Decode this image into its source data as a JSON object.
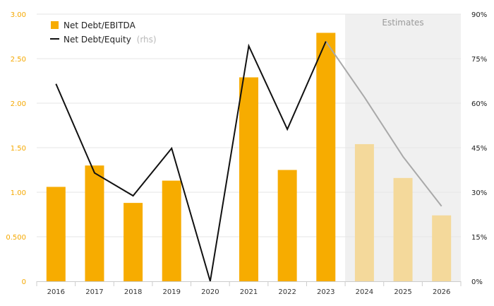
{
  "chart_data": {
    "type": "bar",
    "categories": [
      "2016",
      "2017",
      "2018",
      "2019",
      "2020",
      "2021",
      "2022",
      "2023",
      "2024",
      "2025",
      "2026"
    ],
    "series": [
      {
        "name": "Net Debt/EBITDA",
        "type": "bar",
        "axis": "left",
        "values": [
          1.06,
          1.3,
          0.88,
          1.13,
          0.0,
          2.29,
          1.25,
          2.79,
          1.54,
          1.16,
          0.74
        ]
      },
      {
        "name": "Net Debt/Equity",
        "type": "line",
        "axis": "right",
        "values": [
          66.5,
          36.5,
          28.8,
          44.8,
          0.0,
          79.3,
          51.2,
          80.8,
          62.0,
          42.0,
          25.3
        ]
      }
    ],
    "estimate_start_index": 8,
    "estimates_label": "Estimates",
    "legend": [
      {
        "label": "Net Debt/EBITDA",
        "suffix": ""
      },
      {
        "label": "Net Debt/Equity",
        "suffix": "(rhs)"
      }
    ],
    "legend_position": "top-left",
    "left_axis": {
      "ylim": [
        0,
        3.0
      ],
      "tick_labels": [
        "0",
        "0.500",
        "1.00",
        "1.50",
        "2.00",
        "2.50",
        "3.00"
      ]
    },
    "right_axis": {
      "ylim": [
        0,
        90
      ],
      "tick_labels": [
        "0%",
        "15%",
        "30%",
        "45%",
        "60%",
        "75%",
        "90%"
      ]
    },
    "grid": true,
    "colors": {
      "bar": "#f7ac00",
      "bar_estimate": "#f4d99b",
      "line": "#111111",
      "line_estimate": "#a9a9a9",
      "estimate_bg": "#f0f0f0",
      "grid": "#e6e6e6",
      "left_tick": "#f5a800"
    }
  }
}
